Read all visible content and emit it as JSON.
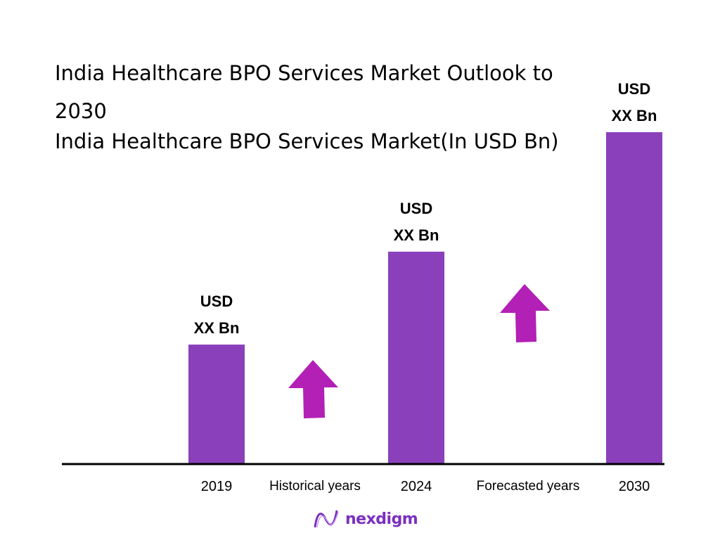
{
  "title": "India Healthcare BPO Services Market Outlook to 2030",
  "subtitle": "India Healthcare BPO Services Market(In USD Bn)",
  "chart_data": {
    "type": "bar",
    "title": "India Healthcare BPO Services Market Outlook to 2030",
    "subtitle": "India Healthcare BPO Services Market(In USD Bn)",
    "categories": [
      "2019",
      "2024",
      "2030"
    ],
    "values": [
      36,
      64,
      100
    ],
    "data_labels": [
      [
        "USD",
        "XX Bn"
      ],
      [
        "USD",
        "XX Bn"
      ],
      [
        "USD",
        "XX Bn"
      ]
    ],
    "period_labels": [
      "Historical years",
      "Forecasted years"
    ],
    "grid": false,
    "colors": {
      "bar": "#8A40BA",
      "arrow": "#B320B6",
      "axis": "#000000"
    }
  },
  "logo": {
    "text": "nexdigm",
    "color": "#7A2FC0"
  }
}
